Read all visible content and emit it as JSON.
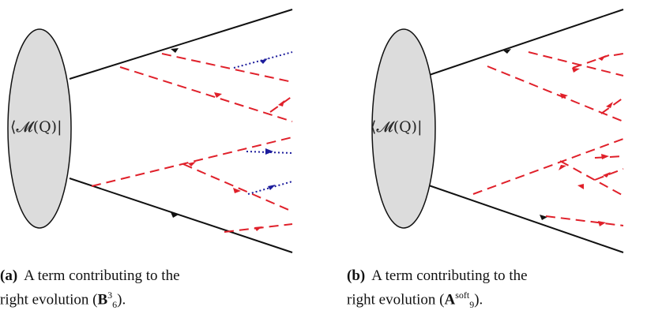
{
  "panels": [
    {
      "blob_label": "⟨𝓜(Q)|",
      "caption_tag": "(a)",
      "caption_text": "A term contributing to the",
      "caption_line2_prefix": "right evolution (",
      "caption_symbol": "B",
      "caption_sup": "3",
      "caption_sub": "6",
      "caption_suffix": ")."
    },
    {
      "blob_label": "⟨𝓜(Q)|",
      "caption_tag": "(b)",
      "caption_text": "A term contributing to the",
      "caption_line2_prefix": "right evolution (",
      "caption_symbol": "A",
      "caption_sup": "soft",
      "caption_sub": "9",
      "caption_suffix": ")."
    }
  ],
  "colors": {
    "quark": "#111111",
    "gluon_red": "#e0202a",
    "soft_blue": "#1c1c9c",
    "blob_fill": "#dcdcdc"
  }
}
